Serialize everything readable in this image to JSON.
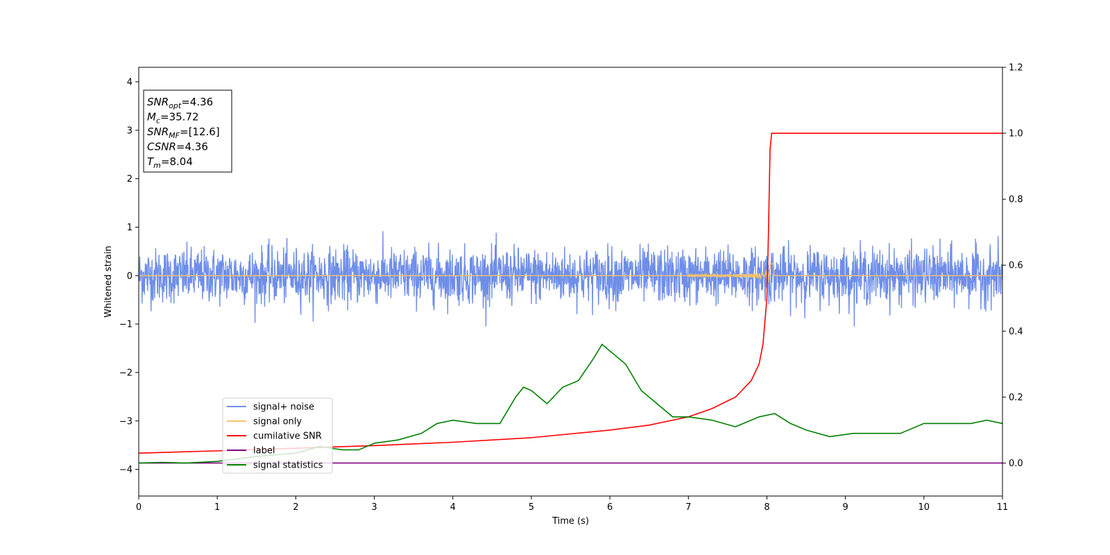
{
  "chart_data": {
    "type": "line",
    "xlabel": "Time (s)",
    "ylabel": "Whitened strain",
    "xlim": [
      0,
      11
    ],
    "ylim_left": [
      -4.55,
      4.3
    ],
    "ylim_right": [
      -0.1,
      1.2
    ],
    "x_ticks": [
      "0",
      "1",
      "2",
      "3",
      "4",
      "5",
      "6",
      "7",
      "8",
      "9",
      "10",
      "11"
    ],
    "y_left_ticks": [
      "4",
      "3",
      "2",
      "1",
      "0",
      "−1",
      "−2",
      "−3",
      "−4"
    ],
    "y_right_ticks": [
      "1.2",
      "1.0",
      "0.8",
      "0.6",
      "0.4",
      "0.2",
      "0.0"
    ],
    "grid": false,
    "legend_position": "lower-left",
    "annotation_box": {
      "lines": [
        {
          "var": "SNR",
          "sub": "opt",
          "value": "=4.36"
        },
        {
          "var": "M",
          "sub": "c",
          "value": "=35.72"
        },
        {
          "var": "SNR",
          "sub": "MF",
          "value": "=[12.6]"
        },
        {
          "var": "CSNR",
          "sub": "",
          "value": "=4.36"
        },
        {
          "var": "T",
          "sub": "m",
          "value": "=8.04"
        }
      ]
    },
    "series": [
      {
        "name": "signal+ noise",
        "color": "#6f8ee8",
        "axis": "left",
        "kind": "noise",
        "amplitude": 0.28,
        "envelope": [
          0.75,
          0.7,
          1.05
        ]
      },
      {
        "name": "signal only",
        "color": "#f5c26b",
        "axis": "left",
        "kind": "chirp",
        "merger_time": 8.04,
        "value": 0
      },
      {
        "name": "cumilative SNR",
        "color": "#ff0000",
        "axis": "right",
        "x": [
          0,
          1,
          2,
          3,
          4,
          5,
          6,
          6.5,
          7,
          7.3,
          7.6,
          7.8,
          7.9,
          7.95,
          8.0,
          8.02,
          8.04,
          8.06,
          11
        ],
        "y": [
          0.03,
          0.037,
          0.045,
          0.053,
          0.063,
          0.077,
          0.1,
          0.115,
          0.14,
          0.165,
          0.2,
          0.25,
          0.3,
          0.36,
          0.5,
          0.7,
          0.95,
          1.0,
          1.0
        ]
      },
      {
        "name": "label",
        "color": "#800080",
        "axis": "right",
        "x": [
          0,
          11
        ],
        "y": [
          0,
          0
        ]
      },
      {
        "name": "signal statistics",
        "color": "#008000",
        "axis": "right",
        "x": [
          0,
          0.3,
          0.6,
          1.0,
          1.5,
          2.0,
          2.3,
          2.6,
          2.8,
          3.0,
          3.3,
          3.6,
          3.8,
          4.0,
          4.3,
          4.6,
          4.8,
          4.9,
          5.0,
          5.2,
          5.4,
          5.6,
          5.8,
          5.9,
          6.0,
          6.2,
          6.4,
          6.6,
          6.8,
          7.0,
          7.3,
          7.6,
          7.9,
          8.1,
          8.3,
          8.5,
          8.8,
          9.1,
          9.4,
          9.7,
          10.0,
          10.3,
          10.6,
          10.8,
          11.0
        ],
        "y": [
          0.0,
          0.002,
          0.0,
          0.005,
          0.02,
          0.03,
          0.05,
          0.04,
          0.04,
          0.06,
          0.07,
          0.09,
          0.12,
          0.13,
          0.12,
          0.12,
          0.2,
          0.23,
          0.22,
          0.18,
          0.23,
          0.25,
          0.32,
          0.36,
          0.34,
          0.3,
          0.22,
          0.18,
          0.14,
          0.14,
          0.13,
          0.11,
          0.14,
          0.15,
          0.12,
          0.1,
          0.08,
          0.09,
          0.09,
          0.09,
          0.12,
          0.12,
          0.12,
          0.13,
          0.12
        ]
      }
    ]
  }
}
